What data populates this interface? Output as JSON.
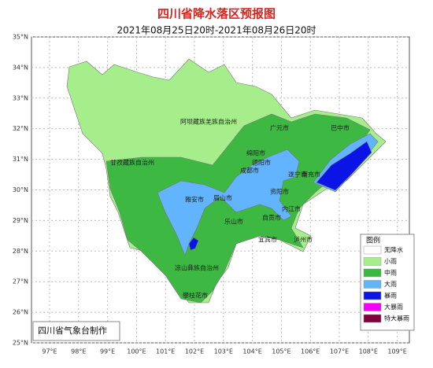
{
  "header": {
    "title": "四川省降水落区预报图",
    "subtitle": "2021年08月25日20时-2021年08月26日20时"
  },
  "axes": {
    "lat": [
      "35°N",
      "34°N",
      "33°N",
      "32°N",
      "31°N",
      "30°N",
      "29°N",
      "28°N",
      "27°N",
      "26°N",
      "25°N"
    ],
    "lon": [
      "97°E",
      "98°E",
      "99°E",
      "100°E",
      "101°E",
      "102°E",
      "103°E",
      "104°E",
      "105°E",
      "106°E",
      "107°E",
      "108°E",
      "109°E"
    ]
  },
  "places": [
    "阿坝藏族羌族自治州",
    "甘孜藏族自治州",
    "广元市",
    "巴中市",
    "绵阳市",
    "德阳市",
    "成都市",
    "南充市",
    "遂宁市",
    "雅安市",
    "眉山市",
    "资阳市",
    "乐山市",
    "内江市",
    "自贡市",
    "宜宾市",
    "泸州市",
    "凉山彝族自治州",
    "攀枝花市"
  ],
  "legend": {
    "title": "图例",
    "items": [
      {
        "label": "无降水",
        "color": "#ffffff"
      },
      {
        "label": "小雨",
        "color": "#a6ee8c"
      },
      {
        "label": "中雨",
        "color": "#3cb843"
      },
      {
        "label": "大雨",
        "color": "#63b4ff"
      },
      {
        "label": "暴雨",
        "color": "#0a14e6"
      },
      {
        "label": "大暴雨",
        "color": "#f500f5"
      },
      {
        "label": "特大暴雨",
        "color": "#80003c"
      }
    ]
  },
  "footer": "四川省气象台制作"
}
